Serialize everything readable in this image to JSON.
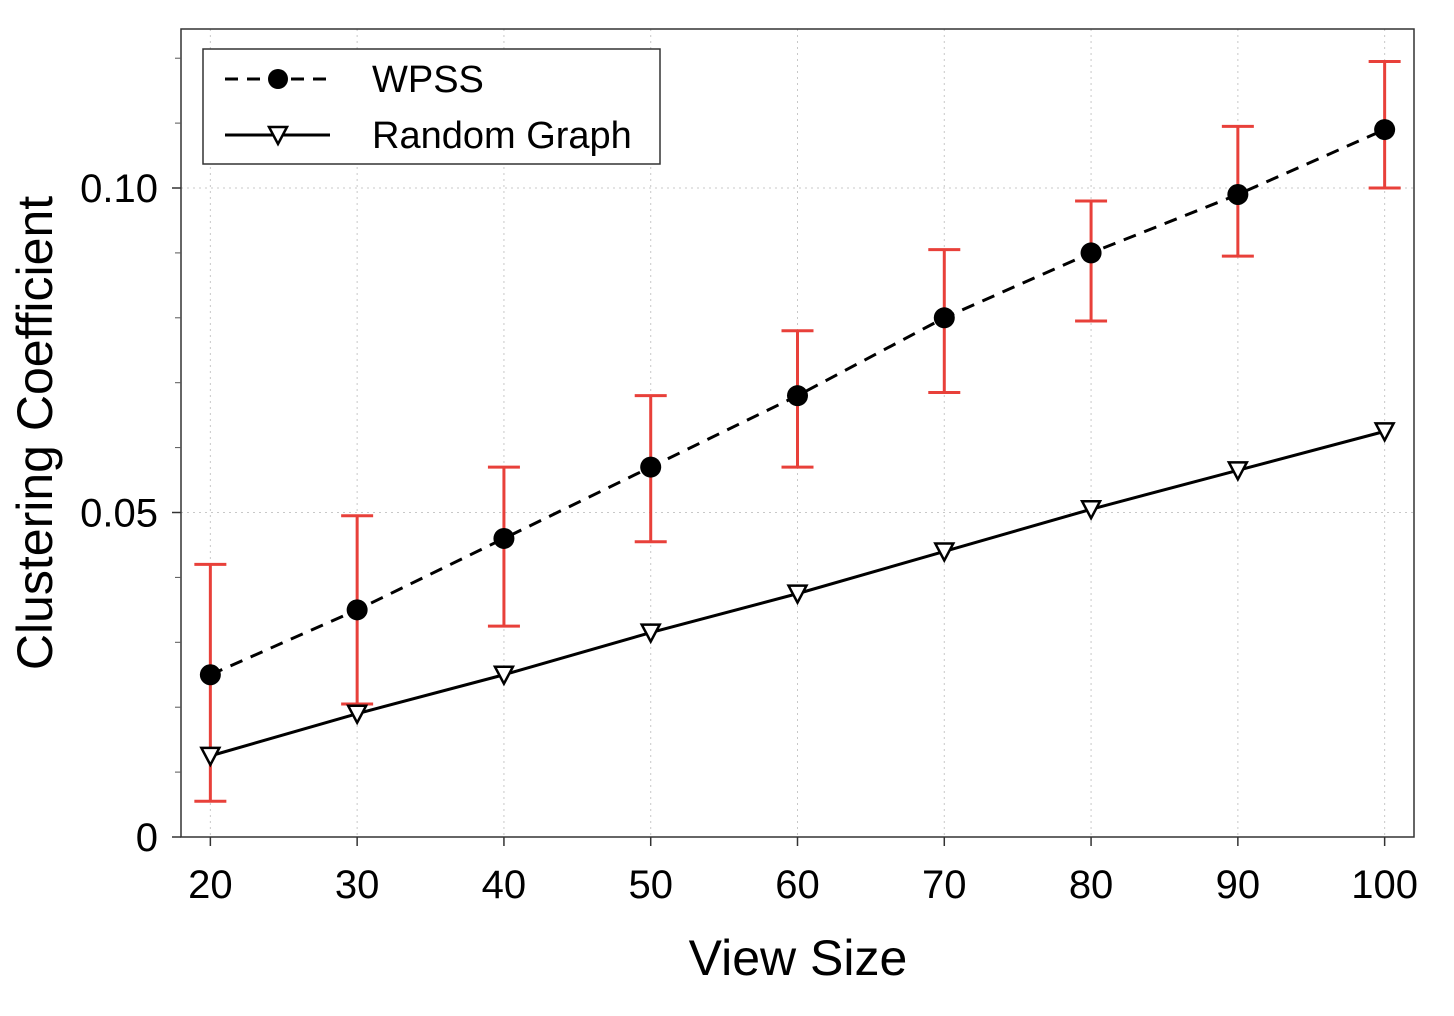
{
  "chart_data": {
    "type": "line",
    "title": "",
    "xlabel": "View Size",
    "ylabel": "Clustering Coefficient",
    "x": [
      20,
      30,
      40,
      50,
      60,
      70,
      80,
      90,
      100
    ],
    "xlim": [
      18,
      102
    ],
    "ylim": [
      0,
      0.1245
    ],
    "x_ticks": [
      20,
      30,
      40,
      50,
      60,
      70,
      80,
      90,
      100
    ],
    "y_ticks": [
      {
        "value": 0,
        "label": "0"
      },
      {
        "value": 0.05,
        "label": "0.05"
      },
      {
        "value": 0.1,
        "label": "0.10"
      }
    ],
    "y_minor_ticks": [
      0.01,
      0.02,
      0.03,
      0.04,
      0.06,
      0.07,
      0.08,
      0.09,
      0.11,
      0.12
    ],
    "grid": true,
    "legend_position": "top-left",
    "series": [
      {
        "name": "WPSS",
        "line_style": "dashed",
        "marker": "filled-circle",
        "color": "#000000",
        "values": [
          0.025,
          0.035,
          0.046,
          0.057,
          0.068,
          0.08,
          0.09,
          0.099,
          0.109
        ],
        "error_low": [
          0.0055,
          0.0205,
          0.0325,
          0.0455,
          0.057,
          0.0685,
          0.0795,
          0.0895,
          0.1
        ],
        "error_high": [
          0.042,
          0.0495,
          0.057,
          0.068,
          0.078,
          0.0905,
          0.098,
          0.1095,
          0.1195
        ],
        "error_color": "#e8403a"
      },
      {
        "name": "Random Graph",
        "line_style": "solid",
        "marker": "open-triangle-down",
        "color": "#000000",
        "values": [
          0.0125,
          0.019,
          0.025,
          0.0315,
          0.0375,
          0.044,
          0.0505,
          0.0565,
          0.0625
        ]
      }
    ]
  }
}
